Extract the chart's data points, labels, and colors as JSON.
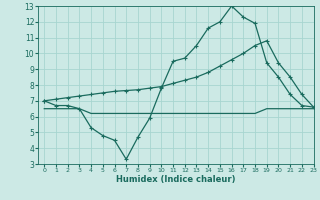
{
  "xlabel": "Humidex (Indice chaleur)",
  "xlim": [
    -0.5,
    23
  ],
  "ylim": [
    3,
    13
  ],
  "xticks": [
    0,
    1,
    2,
    3,
    4,
    5,
    6,
    7,
    8,
    9,
    10,
    11,
    12,
    13,
    14,
    15,
    16,
    17,
    18,
    19,
    20,
    21,
    22,
    23
  ],
  "yticks": [
    3,
    4,
    5,
    6,
    7,
    8,
    9,
    10,
    11,
    12,
    13
  ],
  "background_color": "#cce9e5",
  "grid_color": "#a8d5d0",
  "line_color": "#1a6b5e",
  "curve1_x": [
    0,
    1,
    2,
    3,
    4,
    5,
    6,
    7,
    8,
    9,
    10,
    11,
    12,
    13,
    14,
    15,
    16,
    17,
    18,
    19,
    20,
    21,
    22,
    23
  ],
  "curve1_y": [
    7.0,
    6.7,
    6.7,
    6.5,
    5.3,
    4.8,
    4.5,
    3.3,
    4.7,
    5.9,
    7.8,
    9.5,
    9.7,
    10.5,
    11.6,
    12.0,
    13.0,
    12.3,
    11.9,
    9.4,
    8.5,
    7.4,
    6.7,
    6.6
  ],
  "curve2_x": [
    0,
    1,
    2,
    3,
    4,
    5,
    6,
    7,
    8,
    9,
    10,
    11,
    12,
    13,
    14,
    15,
    16,
    17,
    18,
    19,
    20,
    21,
    22,
    23
  ],
  "curve2_y": [
    7.0,
    7.1,
    7.2,
    7.3,
    7.4,
    7.5,
    7.6,
    7.65,
    7.7,
    7.8,
    7.9,
    8.1,
    8.3,
    8.5,
    8.8,
    9.2,
    9.6,
    10.0,
    10.5,
    10.8,
    9.4,
    8.5,
    7.4,
    6.6
  ],
  "curve3_x": [
    0,
    1,
    2,
    3,
    4,
    5,
    6,
    7,
    8,
    9,
    10,
    11,
    12,
    13,
    14,
    15,
    16,
    17,
    18,
    19,
    20,
    21,
    22,
    23
  ],
  "curve3_y": [
    6.5,
    6.5,
    6.5,
    6.5,
    6.2,
    6.2,
    6.2,
    6.2,
    6.2,
    6.2,
    6.2,
    6.2,
    6.2,
    6.2,
    6.2,
    6.2,
    6.2,
    6.2,
    6.2,
    6.5,
    6.5,
    6.5,
    6.5,
    6.5
  ]
}
